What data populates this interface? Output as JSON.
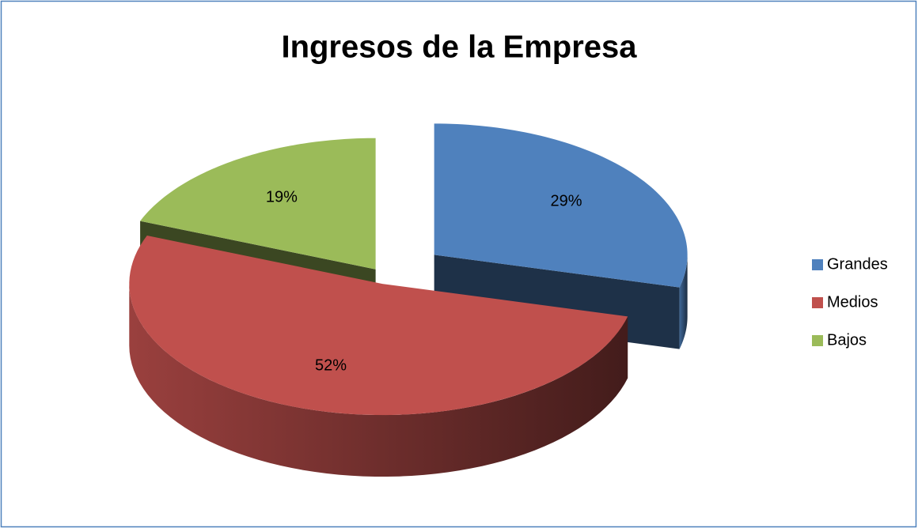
{
  "chart_data": {
    "type": "pie3d",
    "title": "Ingresos de la Empresa",
    "categories": [
      "Grandes",
      "Medios",
      "Bajos"
    ],
    "values": [
      29,
      52,
      19
    ],
    "value_labels": [
      "29%",
      "52%",
      "19%"
    ],
    "colors": [
      "#4f81bd",
      "#c0504d",
      "#9bbb59"
    ],
    "legend": "right"
  }
}
